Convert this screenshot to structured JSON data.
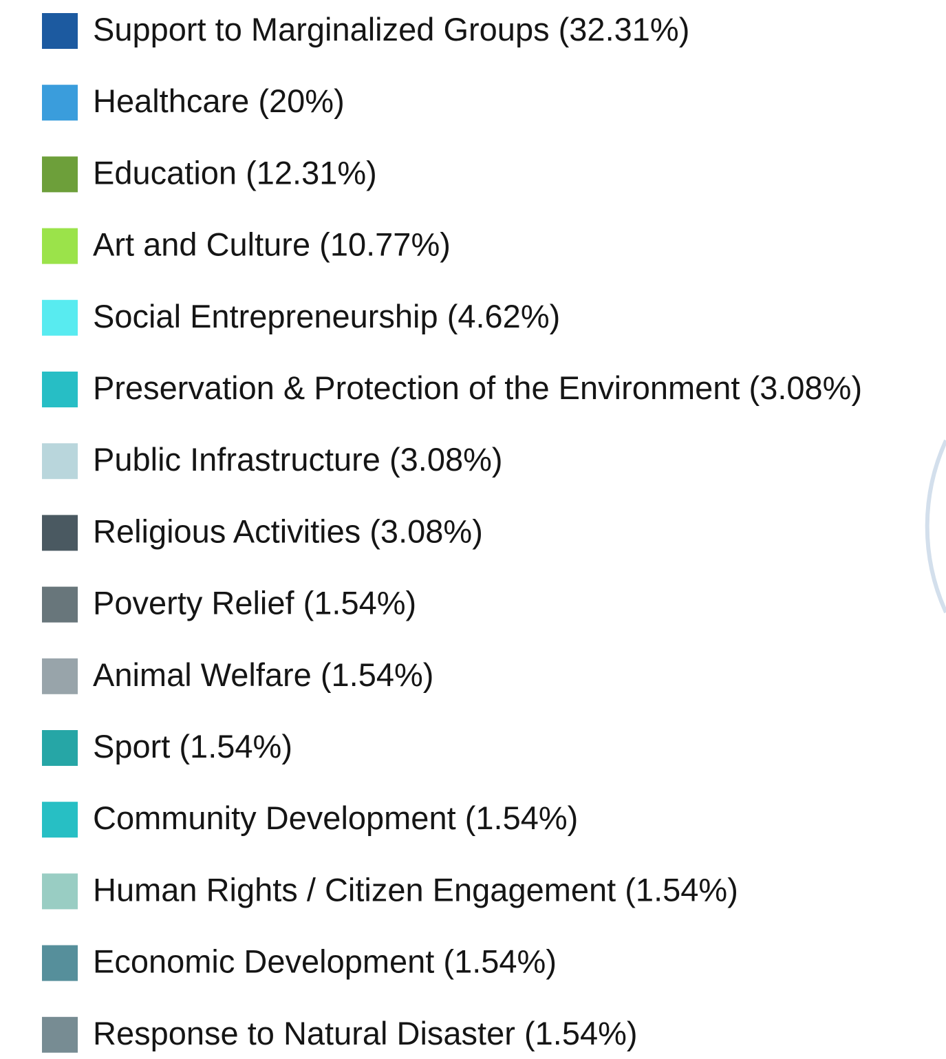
{
  "chart_data": {
    "type": "pie",
    "categories": [
      "Support to Marginalized Groups",
      "Healthcare",
      "Education",
      "Art and Culture",
      "Social Entrepreneurship",
      "Preservation & Protection of the Environment",
      "Public Infrastructure",
      "Religious Activities",
      "Poverty Relief",
      "Animal Welfare",
      "Sport",
      "Community Development",
      "Human Rights / Citizen Engagement",
      "Economic Development",
      "Response to Natural Disaster"
    ],
    "values": [
      32.31,
      20,
      12.31,
      10.77,
      4.62,
      3.08,
      3.08,
      3.08,
      1.54,
      1.54,
      1.54,
      1.54,
      1.54,
      1.54,
      1.54
    ],
    "value_labels": [
      "(32.31%)",
      "(20%)",
      "(12.31%)",
      "(10.77%)",
      "(4.62%)",
      "(3.08%)",
      "(3.08%)",
      "(3.08%)",
      "(1.54%)",
      "(1.54%)",
      "(1.54%)",
      "(1.54%)",
      "(1.54%)",
      "(1.54%)",
      "(1.54%)"
    ],
    "colors": [
      "#1c5aa0",
      "#3a9ddc",
      "#6d9f3a",
      "#9be34a",
      "#58ebf0",
      "#27bec5",
      "#b9d6dc",
      "#4a5961",
      "#68767b",
      "#98a4aa",
      "#26a6a6",
      "#27bfc4",
      "#99cdc3",
      "#568f9b",
      "#778c93"
    ]
  }
}
